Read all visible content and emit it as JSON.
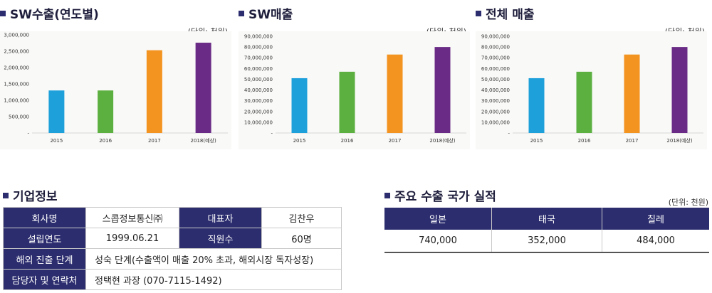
{
  "charts": [
    {
      "title": "SW수출(연도별)",
      "unit": "(단위: 천원)",
      "chart_data": {
        "type": "bar",
        "categories": [
          "2015",
          "2016",
          "2017",
          "2018(예상)"
        ],
        "values": [
          1300000,
          1300000,
          2530000,
          2760000
        ],
        "colors": [
          "#1ea0db",
          "#5cb040",
          "#f39421",
          "#6a2b86"
        ],
        "ylim": [
          0,
          3000000
        ],
        "yticks": [
          0,
          500000,
          1000000,
          1500000,
          2000000,
          2500000,
          3000000
        ],
        "ytick_labels": [
          "-",
          "500,000",
          "1,000,000",
          "1,500,000",
          "2,000,000",
          "2,500,000",
          "3,000,000"
        ]
      }
    },
    {
      "title": "SW매출",
      "unit": "(단위: 천원)",
      "chart_data": {
        "type": "bar",
        "categories": [
          "2015",
          "2016",
          "2017",
          "2018(예상)"
        ],
        "values": [
          51000000,
          57000000,
          73000000,
          80000000
        ],
        "colors": [
          "#1ea0db",
          "#5cb040",
          "#f39421",
          "#6a2b86"
        ],
        "ylim": [
          0,
          90000000
        ],
        "yticks": [
          0,
          10000000,
          20000000,
          30000000,
          40000000,
          50000000,
          60000000,
          70000000,
          80000000,
          90000000
        ],
        "ytick_labels": [
          "-",
          "10,000,000",
          "20,000,000",
          "30,000,000",
          "40,000,000",
          "50,000,000",
          "60,000,000",
          "70,000,000",
          "80,000,000",
          "90,000,000"
        ]
      }
    },
    {
      "title": "전체 매출",
      "unit": "(단위: 천원)",
      "chart_data": {
        "type": "bar",
        "categories": [
          "2015",
          "2016",
          "2017",
          "2018(예상)"
        ],
        "values": [
          51000000,
          57000000,
          73000000,
          80000000
        ],
        "colors": [
          "#1ea0db",
          "#5cb040",
          "#f39421",
          "#6a2b86"
        ],
        "ylim": [
          0,
          90000000
        ],
        "yticks": [
          0,
          10000000,
          20000000,
          30000000,
          40000000,
          50000000,
          60000000,
          70000000,
          80000000,
          90000000
        ],
        "ytick_labels": [
          "-",
          "10,000,000",
          "20,000,000",
          "30,000,000",
          "40,000,000",
          "50,000,000",
          "60,000,000",
          "70,000,000",
          "80,000,000",
          "90,000,000"
        ]
      }
    }
  ],
  "company": {
    "title": "기업정보",
    "name_label": "회사명",
    "name": "스콥정보통신㈜",
    "ceo_label": "대표자",
    "ceo": "김찬우",
    "founded_label": "설립연도",
    "founded": "1999.06.21",
    "employees_label": "직원수",
    "employees": "60명",
    "stage_label": "해외 진출 단계",
    "stage": "성숙 단계(수출액이 매출 20% 초과, 해외시장 독자성장)",
    "contact_label": "담당자 및 연락처",
    "contact": "정택현 과장 (070-7115-1492)"
  },
  "exports": {
    "title": "주요 수출 국가 실적",
    "unit": "(단위: 천원)",
    "countries": [
      "일본",
      "태국",
      "칠레"
    ],
    "values": [
      "740,000",
      "352,000",
      "484,000"
    ]
  },
  "accent": "#2c2d6e"
}
